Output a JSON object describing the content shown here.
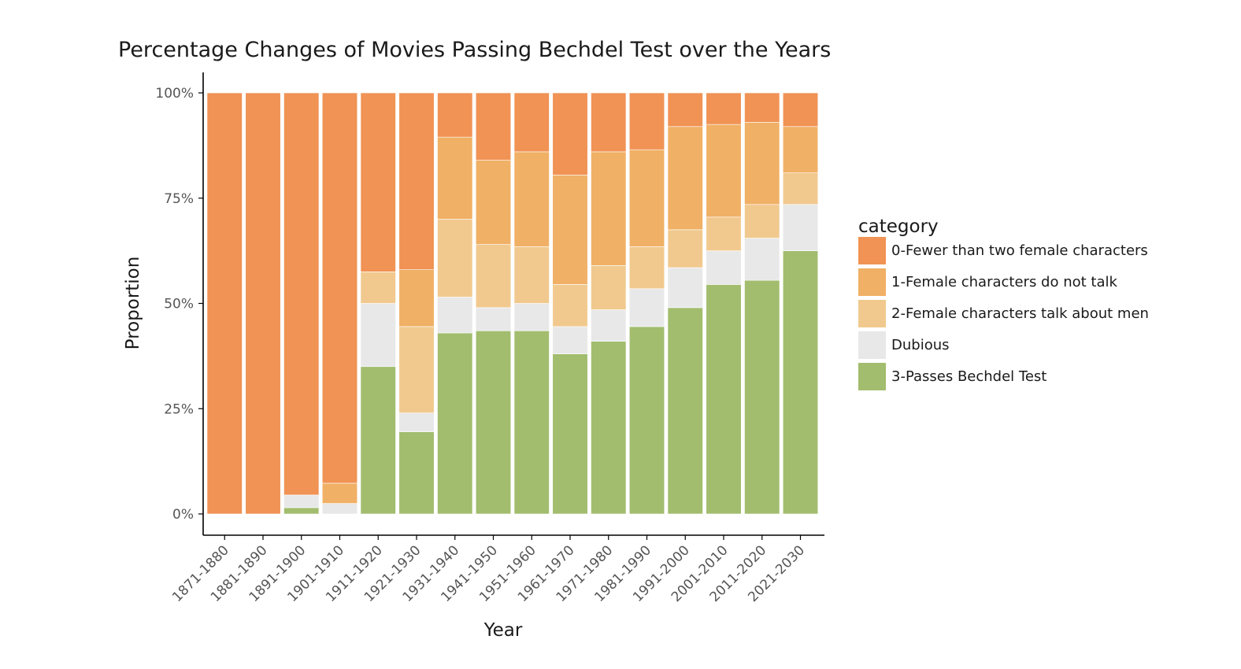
{
  "chart_data": {
    "type": "bar",
    "stacked": true,
    "normalized": true,
    "title": "Percentage Changes of Movies Passing Bechdel Test over the Years",
    "xlabel": "Year",
    "ylabel": "Proportion",
    "ylim": [
      0,
      1
    ],
    "yticks": [
      0,
      0.25,
      0.5,
      0.75,
      1.0
    ],
    "ytick_labels": [
      "0%",
      "25%",
      "50%",
      "75%",
      "100%"
    ],
    "grid": false,
    "legend": {
      "title": "category",
      "position": "right"
    },
    "categories": [
      "1871-1880",
      "1881-1890",
      "1891-1900",
      "1901-1910",
      "1911-1920",
      "1921-1930",
      "1931-1940",
      "1941-1950",
      "1951-1960",
      "1961-1970",
      "1971-1980",
      "1981-1990",
      "1991-2000",
      "2001-2010",
      "2011-2020",
      "2021-2030"
    ],
    "series": [
      {
        "name": "3-Passes Bechdel Test",
        "color": "#a2bd6e",
        "values": [
          0,
          0,
          0.015,
          0,
          0.35,
          0.195,
          0.43,
          0.435,
          0.435,
          0.38,
          0.41,
          0.445,
          0.49,
          0.545,
          0.555,
          0.625
        ]
      },
      {
        "name": "Dubious",
        "color": "#e8e8e8",
        "values": [
          0,
          0,
          0.03,
          0.025,
          0.15,
          0.045,
          0.085,
          0.055,
          0.065,
          0.065,
          0.075,
          0.09,
          0.095,
          0.08,
          0.1,
          0.11
        ]
      },
      {
        "name": "2-Female characters talk about men",
        "color": "#f1c98e",
        "values": [
          0,
          0,
          0,
          0,
          0.075,
          0.205,
          0.185,
          0.15,
          0.135,
          0.1,
          0.105,
          0.1,
          0.09,
          0.08,
          0.08,
          0.075
        ]
      },
      {
        "name": "1-Female characters do not talk",
        "color": "#f0b065",
        "values": [
          0,
          0,
          0,
          0.048,
          0,
          0.135,
          0.195,
          0.2,
          0.225,
          0.26,
          0.27,
          0.23,
          0.245,
          0.22,
          0.195,
          0.11
        ]
      },
      {
        "name": "0-Fewer than two female characters",
        "color": "#f09355",
        "values": [
          1.0,
          1.0,
          0.955,
          0.927,
          0.425,
          0.42,
          0.105,
          0.16,
          0.14,
          0.195,
          0.14,
          0.135,
          0.08,
          0.075,
          0.07,
          0.08
        ]
      }
    ]
  },
  "legend_order": [
    4,
    3,
    2,
    1,
    0
  ]
}
